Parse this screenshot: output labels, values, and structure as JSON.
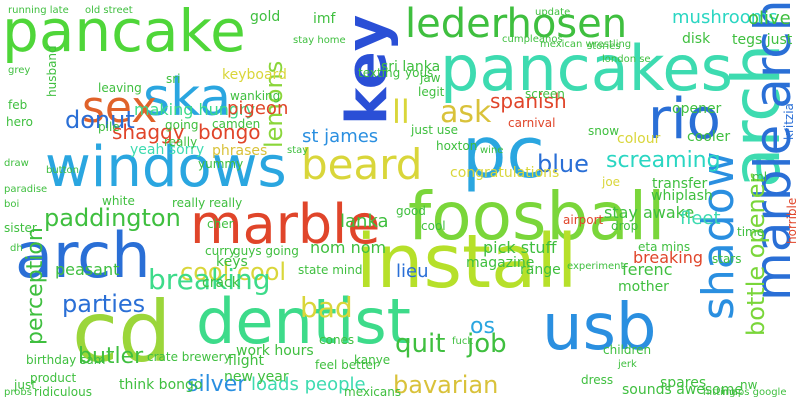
{
  "cloud": {
    "background": "#ffffff",
    "words": [
      {
        "text": "pancake",
        "color": "#4fd639"
      },
      {
        "text": "ska",
        "color": "#2aa6e0"
      },
      {
        "text": "sex",
        "color": "#e0622a"
      },
      {
        "text": "lederhosen",
        "color": "#3fbf3f"
      },
      {
        "text": "pancakes",
        "color": "#3ddbb0"
      },
      {
        "text": "key",
        "color": "#2a4fd6"
      },
      {
        "text": "windows",
        "color": "#2aa6e0"
      },
      {
        "text": "pc",
        "color": "#2aa6e0"
      },
      {
        "text": "rio",
        "color": "#2a6fd6"
      },
      {
        "text": "arch",
        "color": "#3ddbb0"
      },
      {
        "text": "marble arch",
        "color": "#2a6fd6"
      },
      {
        "text": "beard",
        "color": "#d9d63a"
      },
      {
        "text": "marble",
        "color": "#e0452a"
      },
      {
        "text": "foosball",
        "color": "#7ad63a"
      },
      {
        "text": "arch",
        "color": "#2a6fd6"
      },
      {
        "text": "install",
        "color": "#b6e02a"
      },
      {
        "text": "cd",
        "color": "#9bd63a"
      },
      {
        "text": "dentist",
        "color": "#3ddb8a"
      },
      {
        "text": "usb",
        "color": "#2a8fe0"
      },
      {
        "text": "shadow",
        "color": "#2a8fe0"
      },
      {
        "text": "bottle opener",
        "color": "#7ad63a"
      },
      {
        "text": "donut",
        "color": "#2a6fd6"
      },
      {
        "text": "lemons",
        "color": "#8ad63a"
      },
      {
        "text": "ll",
        "color": "#d9d63a"
      },
      {
        "text": "ask",
        "color": "#d9c23a"
      },
      {
        "text": "spanish",
        "color": "#e0452a"
      },
      {
        "text": "shaggy",
        "color": "#e0452a"
      },
      {
        "text": "bongo",
        "color": "#e0452a"
      },
      {
        "text": "blue",
        "color": "#2a6fd6"
      },
      {
        "text": "screaming",
        "color": "#2ad6c2"
      },
      {
        "text": "paddington",
        "color": "#3fbf3f"
      },
      {
        "text": "cool cool",
        "color": "#d9d63a"
      },
      {
        "text": "breaking",
        "color": "#3ddb8a"
      },
      {
        "text": "bad",
        "color": "#d9d63a"
      },
      {
        "text": "perception",
        "color": "#3fbf3f"
      },
      {
        "text": "parties",
        "color": "#2a6fd6"
      },
      {
        "text": "quit",
        "color": "#3fbf3f"
      },
      {
        "text": "job",
        "color": "#3fbf3f"
      },
      {
        "text": "os",
        "color": "#2aa6e0"
      },
      {
        "text": "butler",
        "color": "#3fbf3f"
      },
      {
        "text": "silver",
        "color": "#2a8fe0"
      },
      {
        "text": "loads people",
        "color": "#3ddbb0"
      },
      {
        "text": "bavarian",
        "color": "#d9c23a"
      },
      {
        "text": "making hungry",
        "color": "#3ddb8a"
      },
      {
        "text": "st james",
        "color": "#2a8fe0"
      },
      {
        "text": "mushrooms",
        "color": "#2ad6c2"
      },
      {
        "text": "gold",
        "color": "#3fbf3f"
      },
      {
        "text": "imf",
        "color": "#3fbf3f"
      },
      {
        "text": "disk",
        "color": "#3fbf3f"
      },
      {
        "text": "tegs just",
        "color": "#3fbf3f"
      },
      {
        "text": "olive",
        "color": "#3fbf3f"
      },
      {
        "text": "sri lanka",
        "color": "#3fbf3f"
      },
      {
        "text": "pigeon",
        "color": "#e0452a"
      },
      {
        "text": "keyboard",
        "color": "#d9d63a"
      },
      {
        "text": "yeah sorry",
        "color": "#3ddbb0"
      },
      {
        "text": "phrases",
        "color": "#d9c23a"
      },
      {
        "text": "lanka",
        "color": "#3fbf3f"
      },
      {
        "text": "lieu",
        "color": "#2a6fd6"
      },
      {
        "text": "nom nom",
        "color": "#3fbf3f"
      },
      {
        "text": "pick stuff",
        "color": "#3fbf3f"
      },
      {
        "text": "stay awake",
        "color": "#3fbf3f"
      },
      {
        "text": "fleet",
        "color": "#3ddbb0"
      },
      {
        "text": "ferenc",
        "color": "#3fbf3f"
      },
      {
        "text": "range",
        "color": "#3fbf3f"
      },
      {
        "text": "peasant",
        "color": "#3fbf3f"
      },
      {
        "text": "work hours",
        "color": "#3fbf3f"
      },
      {
        "text": "new year",
        "color": "#3fbf3f"
      },
      {
        "text": "think bongo",
        "color": "#3fbf3f"
      },
      {
        "text": "flight",
        "color": "#3fbf3f"
      },
      {
        "text": "crack",
        "color": "#3fbf3f"
      },
      {
        "text": "sounds awesome",
        "color": "#3fbf3f"
      },
      {
        "text": "spares",
        "color": "#3fbf3f"
      },
      {
        "text": "magazine",
        "color": "#3fbf3f"
      },
      {
        "text": "mother",
        "color": "#3fbf3f"
      },
      {
        "text": "congratulations",
        "color": "#d9d63a"
      },
      {
        "text": "breaking",
        "color": "#e0452a"
      },
      {
        "text": "opener",
        "color": "#3fbf3f"
      },
      {
        "text": "cooler",
        "color": "#3fbf3f"
      },
      {
        "text": "colour",
        "color": "#d9d63a"
      },
      {
        "text": "transfer",
        "color": "#3fbf3f"
      },
      {
        "text": "whiplash",
        "color": "#3fbf3f"
      },
      {
        "text": "keys",
        "color": "#3fbf3f"
      },
      {
        "text": "camden",
        "color": "#3fbf3f"
      },
      {
        "text": "yummy",
        "color": "#3fbf3f"
      },
      {
        "text": "texting",
        "color": "#3fbf3f"
      },
      {
        "text": "leaving",
        "color": "#3fbf3f"
      },
      {
        "text": "husband",
        "color": "#3fbf3f"
      },
      {
        "text": "hero",
        "color": "#3fbf3f"
      },
      {
        "text": "feb",
        "color": "#3fbf3f"
      },
      {
        "text": "pile",
        "color": "#3fbf3f"
      },
      {
        "text": "jaw",
        "color": "#3fbf3f"
      },
      {
        "text": "yous",
        "color": "#3fbf3f"
      },
      {
        "text": "screen",
        "color": "#3fbf3f"
      },
      {
        "text": "just use",
        "color": "#3fbf3f"
      },
      {
        "text": "joe",
        "color": "#d9d63a"
      },
      {
        "text": "airport",
        "color": "#e0452a"
      },
      {
        "text": "sister",
        "color": "#3fbf3f"
      },
      {
        "text": "white",
        "color": "#3fbf3f"
      },
      {
        "text": "really really",
        "color": "#3fbf3f"
      },
      {
        "text": "state mind",
        "color": "#3fbf3f"
      },
      {
        "text": "kanye",
        "color": "#3fbf3f"
      },
      {
        "text": "curry",
        "color": "#3fbf3f"
      },
      {
        "text": "guys going",
        "color": "#3fbf3f"
      },
      {
        "text": "birthday sam",
        "color": "#3fbf3f"
      },
      {
        "text": "product",
        "color": "#3fbf3f"
      },
      {
        "text": "ridiculous",
        "color": "#3fbf3f"
      },
      {
        "text": "cones",
        "color": "#3fbf3f"
      },
      {
        "text": "nw",
        "color": "#3fbf3f"
      },
      {
        "text": "cher",
        "color": "#3fbf3f"
      },
      {
        "text": "eta mins",
        "color": "#3fbf3f"
      },
      {
        "text": "just",
        "color": "#3fbf3f"
      },
      {
        "text": "kritzia",
        "color": "#2a6fd6"
      },
      {
        "text": "time",
        "color": "#3fbf3f"
      },
      {
        "text": "ml",
        "color": "#3fbf3f"
      },
      {
        "text": "dress",
        "color": "#3fbf3f"
      },
      {
        "text": "going",
        "color": "#3fbf3f"
      },
      {
        "text": "stars",
        "color": "#3fbf3f"
      },
      {
        "text": "sri",
        "color": "#3fbf3f"
      },
      {
        "text": "wanking",
        "color": "#3fbf3f"
      },
      {
        "text": "legit",
        "color": "#3fbf3f"
      },
      {
        "text": "hoxton",
        "color": "#3fbf3f"
      },
      {
        "text": "really",
        "color": "#3fbf3f"
      },
      {
        "text": "carnival",
        "color": "#e0452a"
      },
      {
        "text": "snow",
        "color": "#3fbf3f"
      },
      {
        "text": "running late",
        "color": "#3fbf3f"
      },
      {
        "text": "old street",
        "color": "#3fbf3f"
      },
      {
        "text": "stay home",
        "color": "#3fbf3f"
      },
      {
        "text": "update",
        "color": "#3fbf3f"
      },
      {
        "text": "stories",
        "color": "#3fbf3f"
      },
      {
        "text": "london se",
        "color": "#3fbf3f"
      },
      {
        "text": "mexican wrestling",
        "color": "#3fbf3f"
      },
      {
        "text": "cumpleanos",
        "color": "#3fbf3f"
      },
      {
        "text": "grey",
        "color": "#3fbf3f"
      },
      {
        "text": "draw",
        "color": "#3fbf3f"
      },
      {
        "text": "paradise",
        "color": "#3fbf3f"
      },
      {
        "text": "boi",
        "color": "#3fbf3f"
      },
      {
        "text": "dh",
        "color": "#3fbf3f"
      },
      {
        "text": "cool",
        "color": "#3fbf3f"
      },
      {
        "text": "good",
        "color": "#3fbf3f"
      },
      {
        "text": "experiment",
        "color": "#3fbf3f"
      },
      {
        "text": "drop",
        "color": "#3fbf3f"
      },
      {
        "text": "horrible",
        "color": "#e0452a"
      },
      {
        "text": "fuck",
        "color": "#3fbf3f"
      },
      {
        "text": "children",
        "color": "#3fbf3f"
      },
      {
        "text": "jerk",
        "color": "#3fbf3f"
      },
      {
        "text": "feel better",
        "color": "#3fbf3f"
      },
      {
        "text": "crate brewery",
        "color": "#3fbf3f"
      },
      {
        "text": "mexicans",
        "color": "#3fbf3f"
      },
      {
        "text": "hitting",
        "color": "#3fbf3f"
      },
      {
        "text": "maps google",
        "color": "#3fbf3f"
      },
      {
        "text": "probs",
        "color": "#3fbf3f"
      },
      {
        "text": "stay",
        "color": "#3fbf3f"
      },
      {
        "text": "wine",
        "color": "#3fbf3f"
      },
      {
        "text": "button",
        "color": "#3fbf3f"
      }
    ]
  }
}
